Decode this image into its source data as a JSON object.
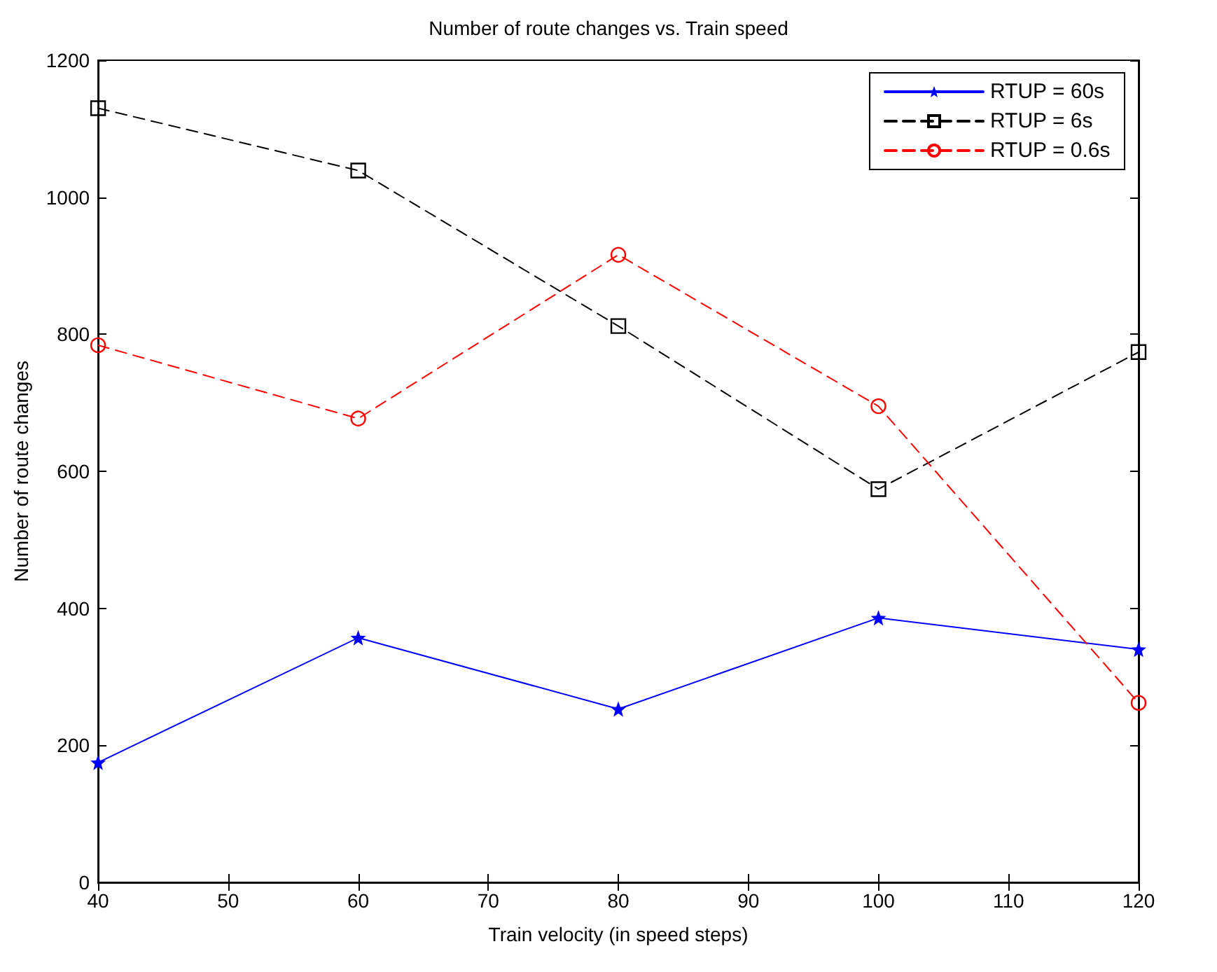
{
  "chart_data": {
    "type": "line",
    "title": "Number of route changes vs. Train speed",
    "xlabel": "Train velocity (in speed steps)",
    "ylabel": "Number of route changes",
    "x": [
      40,
      60,
      80,
      100,
      120
    ],
    "series": [
      {
        "name": "RTUP = 60s",
        "color": "#0000ff",
        "marker": "star",
        "line_style": "solid",
        "values": [
          175,
          357,
          253,
          386,
          340
        ]
      },
      {
        "name": "RTUP = 6s",
        "color": "#000000",
        "marker": "square",
        "line_style": "dashed",
        "values": [
          1130,
          1039,
          812,
          574,
          774
        ]
      },
      {
        "name": "RTUP = 0.6s",
        "color": "#ff0000",
        "marker": "circle",
        "line_style": "dashed",
        "values": [
          784,
          677,
          916,
          695,
          262
        ]
      }
    ],
    "xlim": [
      40,
      120
    ],
    "xticks": [
      40,
      50,
      60,
      70,
      80,
      90,
      100,
      110,
      120
    ],
    "ylim": [
      0,
      1200
    ],
    "yticks": [
      0,
      200,
      400,
      600,
      800,
      1000,
      1200
    ],
    "grid": false,
    "legend": "top right"
  }
}
